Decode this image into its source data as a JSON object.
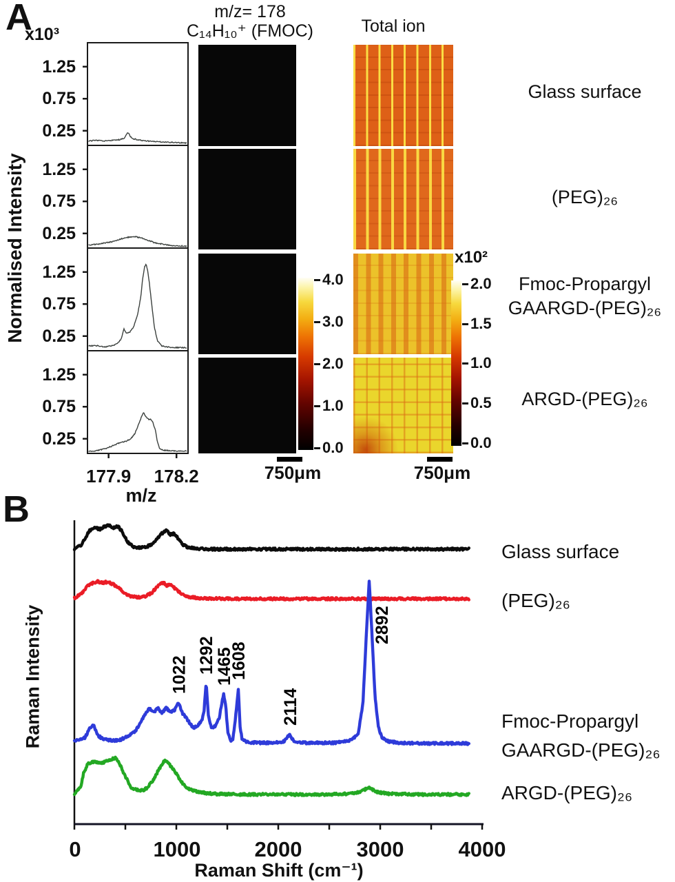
{
  "panel_a": {
    "label": "A",
    "y_axis_multiplier": "x10³",
    "y_axis_label": "Normalised Intensity",
    "x_axis_label": "m/z",
    "x_ticks": [
      "177.9",
      "178.2"
    ],
    "col2_header_line1": "m/z= 178",
    "col2_header_line2": "C₁₄H₁₀⁺ (FMOC)",
    "col3_header": "Total ion",
    "colorbar1": {
      "ticks": [
        "4.0",
        "3.0",
        "2.0",
        "1.0",
        "0.0"
      ]
    },
    "colorbar2": {
      "multiplier": "x10²",
      "ticks": [
        "2.0",
        "1.5",
        "1.0",
        "0.5",
        "0.0"
      ]
    },
    "scalebar1_label": "750μm",
    "scalebar2_label": "750μm",
    "rows": [
      {
        "label_lines": [
          "Glass surface"
        ],
        "total_ion_base_color": "#de6017"
      },
      {
        "label_lines": [
          "(PEG)₂₆"
        ],
        "total_ion_base_color": "#e0681c"
      },
      {
        "label_lines": [
          "Fmoc-Propargyl",
          "GAARGD-(PEG)₂₆"
        ],
        "total_ion_base_color": "#ecc22a"
      },
      {
        "label_lines": [
          "ARGD-(PEG)₂₆"
        ],
        "total_ion_base_color": "#ead62c"
      }
    ]
  },
  "panel_b": {
    "label": "B",
    "y_axis_label": "Raman Intensity",
    "x_axis_label": "Raman Shift (cm⁻¹)",
    "x_ticks": [
      "0",
      "1000",
      "2000",
      "3000",
      "4000"
    ],
    "legend": [
      {
        "label_lines": [
          "Glass surface"
        ]
      },
      {
        "label_lines": [
          "(PEG)₂₆"
        ]
      },
      {
        "label_lines": [
          "Fmoc-Propargyl",
          "GAARGD-(PEG)₂₆"
        ]
      },
      {
        "label_lines": [
          "ARGD-(PEG)₂₆"
        ]
      }
    ]
  },
  "chart_data": [
    {
      "type": "line",
      "title": "MALDI mass spectra at m/z 178",
      "xlabel": "m/z",
      "ylabel": "Normalised Intensity",
      "y_multiplier": "x10³",
      "xlim": [
        177.85,
        178.25
      ],
      "xticks": [
        177.9,
        178.2
      ],
      "yticks": [
        1.25,
        0.75,
        0.25
      ],
      "grid": false,
      "series": [
        {
          "name": "Glass surface",
          "points": [
            [
              0,
              0.09
            ],
            [
              0.08,
              0.1
            ],
            [
              0.16,
              0.09
            ],
            [
              0.24,
              0.1
            ],
            [
              0.31,
              0.11
            ],
            [
              0.36,
              0.13
            ],
            [
              0.4,
              0.22
            ],
            [
              0.44,
              0.13
            ],
            [
              0.5,
              0.11
            ],
            [
              0.58,
              0.09
            ],
            [
              0.68,
              0.08
            ],
            [
              0.8,
              0.07
            ],
            [
              1,
              0.06
            ]
          ]
        },
        {
          "name": "(PEG)₂₆",
          "points": [
            [
              0,
              0.07
            ],
            [
              0.08,
              0.08
            ],
            [
              0.16,
              0.1
            ],
            [
              0.24,
              0.12
            ],
            [
              0.32,
              0.16
            ],
            [
              0.4,
              0.19
            ],
            [
              0.47,
              0.2
            ],
            [
              0.54,
              0.18
            ],
            [
              0.61,
              0.14
            ],
            [
              0.68,
              0.1
            ],
            [
              0.76,
              0.08
            ],
            [
              0.85,
              0.06
            ],
            [
              1,
              0.05
            ]
          ]
        },
        {
          "name": "Fmoc-Propargyl GAARGD-(PEG)₂₆",
          "points": [
            [
              0,
              0.1
            ],
            [
              0.1,
              0.1
            ],
            [
              0.17,
              0.08
            ],
            [
              0.24,
              0.1
            ],
            [
              0.29,
              0.13
            ],
            [
              0.33,
              0.2
            ],
            [
              0.36,
              0.36
            ],
            [
              0.385,
              0.3
            ],
            [
              0.42,
              0.31
            ],
            [
              0.46,
              0.4
            ],
            [
              0.5,
              0.6
            ],
            [
              0.53,
              0.85
            ],
            [
              0.55,
              1.15
            ],
            [
              0.57,
              1.33
            ],
            [
              0.585,
              1.37
            ],
            [
              0.6,
              1.28
            ],
            [
              0.62,
              1.05
            ],
            [
              0.645,
              0.7
            ],
            [
              0.67,
              0.38
            ],
            [
              0.7,
              0.18
            ],
            [
              0.74,
              0.1
            ],
            [
              0.8,
              0.08
            ],
            [
              0.9,
              0.07
            ],
            [
              1,
              0.07
            ]
          ]
        },
        {
          "name": "ARGD-(PEG)₂₆",
          "points": [
            [
              0,
              0.05
            ],
            [
              0.1,
              0.07
            ],
            [
              0.18,
              0.1
            ],
            [
              0.26,
              0.15
            ],
            [
              0.32,
              0.19
            ],
            [
              0.38,
              0.21
            ],
            [
              0.43,
              0.25
            ],
            [
              0.47,
              0.33
            ],
            [
              0.51,
              0.48
            ],
            [
              0.54,
              0.6
            ],
            [
              0.56,
              0.66
            ],
            [
              0.58,
              0.6
            ],
            [
              0.61,
              0.55
            ],
            [
              0.63,
              0.56
            ],
            [
              0.655,
              0.5
            ],
            [
              0.68,
              0.38
            ],
            [
              0.7,
              0.2
            ],
            [
              0.72,
              0.1
            ],
            [
              0.76,
              0.07
            ],
            [
              0.85,
              0.06
            ],
            [
              1,
              0.06
            ]
          ]
        }
      ]
    },
    {
      "type": "line",
      "title": "Raman spectra",
      "xlabel": "Raman Shift (cm⁻¹)",
      "ylabel": "Raman Intensity",
      "xlim": [
        0,
        4000
      ],
      "xticks": [
        0,
        1000,
        2000,
        3000,
        4000
      ],
      "grid": false,
      "legend_position": "right",
      "annotations": [
        {
          "label": "1022",
          "x": 1022
        },
        {
          "label": "1292",
          "x": 1292
        },
        {
          "label": "1465",
          "x": 1465
        },
        {
          "label": "1608",
          "x": 1608
        },
        {
          "label": "2114",
          "x": 2114
        },
        {
          "label": "2892",
          "x": 2892
        }
      ],
      "series": [
        {
          "name": "Glass surface",
          "color": "#0c0c0c",
          "points": [
            [
              0,
              4
            ],
            [
              60,
              8
            ],
            [
              110,
              20
            ],
            [
              150,
              30
            ],
            [
              200,
              34
            ],
            [
              250,
              32
            ],
            [
              300,
              36
            ],
            [
              340,
              38
            ],
            [
              380,
              34
            ],
            [
              430,
              36
            ],
            [
              470,
              28
            ],
            [
              520,
              14
            ],
            [
              570,
              7
            ],
            [
              640,
              5
            ],
            [
              700,
              6
            ],
            [
              760,
              10
            ],
            [
              810,
              18
            ],
            [
              860,
              26
            ],
            [
              900,
              30
            ],
            [
              940,
              24
            ],
            [
              980,
              26
            ],
            [
              1020,
              18
            ],
            [
              1060,
              10
            ],
            [
              1110,
              6
            ],
            [
              1180,
              4
            ],
            [
              1300,
              3
            ],
            [
              1600,
              3
            ],
            [
              2000,
              3
            ],
            [
              2400,
              3
            ],
            [
              2800,
              3
            ],
            [
              3200,
              3
            ],
            [
              3600,
              3
            ],
            [
              3870,
              3
            ]
          ]
        },
        {
          "name": "(PEG)₂₆",
          "color": "#ea1c26",
          "points": [
            [
              0,
              4
            ],
            [
              70,
              10
            ],
            [
              130,
              22
            ],
            [
              180,
              26
            ],
            [
              230,
              28
            ],
            [
              280,
              26
            ],
            [
              330,
              28
            ],
            [
              380,
              24
            ],
            [
              430,
              20
            ],
            [
              480,
              12
            ],
            [
              540,
              7
            ],
            [
              620,
              5
            ],
            [
              700,
              7
            ],
            [
              760,
              12
            ],
            [
              820,
              22
            ],
            [
              870,
              27
            ],
            [
              910,
              22
            ],
            [
              950,
              24
            ],
            [
              1000,
              16
            ],
            [
              1050,
              10
            ],
            [
              1120,
              6
            ],
            [
              1220,
              4
            ],
            [
              1500,
              3
            ],
            [
              1900,
              3
            ],
            [
              2300,
              3
            ],
            [
              2700,
              3
            ],
            [
              3100,
              3
            ],
            [
              3500,
              3
            ],
            [
              3870,
              3
            ]
          ]
        },
        {
          "name": "Fmoc-Propargyl GAARGD-(PEG)₂₆",
          "color": "#2e3bd9",
          "points": [
            [
              0,
              8
            ],
            [
              100,
              12
            ],
            [
              160,
              28
            ],
            [
              190,
              30
            ],
            [
              230,
              16
            ],
            [
              280,
              10
            ],
            [
              340,
              9
            ],
            [
              400,
              8
            ],
            [
              460,
              10
            ],
            [
              520,
              14
            ],
            [
              600,
              22
            ],
            [
              650,
              35
            ],
            [
              700,
              48
            ],
            [
              740,
              55
            ],
            [
              780,
              50
            ],
            [
              820,
              55
            ],
            [
              860,
              48
            ],
            [
              900,
              56
            ],
            [
              940,
              50
            ],
            [
              980,
              52
            ],
            [
              1022,
              64
            ],
            [
              1060,
              48
            ],
            [
              1090,
              42
            ],
            [
              1130,
              34
            ],
            [
              1170,
              26
            ],
            [
              1210,
              30
            ],
            [
              1250,
              38
            ],
            [
              1270,
              48
            ],
            [
              1292,
              92
            ],
            [
              1315,
              44
            ],
            [
              1345,
              26
            ],
            [
              1385,
              30
            ],
            [
              1420,
              40
            ],
            [
              1450,
              66
            ],
            [
              1465,
              76
            ],
            [
              1485,
              58
            ],
            [
              1505,
              20
            ],
            [
              1530,
              8
            ],
            [
              1555,
              10
            ],
            [
              1580,
              40
            ],
            [
              1608,
              84
            ],
            [
              1625,
              30
            ],
            [
              1645,
              10
            ],
            [
              1690,
              6
            ],
            [
              1800,
              5
            ],
            [
              1950,
              5
            ],
            [
              2060,
              7
            ],
            [
              2114,
              18
            ],
            [
              2150,
              7
            ],
            [
              2250,
              5
            ],
            [
              2400,
              5
            ],
            [
              2550,
              5
            ],
            [
              2700,
              8
            ],
            [
              2780,
              16
            ],
            [
              2830,
              60
            ],
            [
              2860,
              150
            ],
            [
              2892,
              240
            ],
            [
              2920,
              160
            ],
            [
              2950,
              70
            ],
            [
              2985,
              26
            ],
            [
              3020,
              12
            ],
            [
              3080,
              7
            ],
            [
              3200,
              5
            ],
            [
              3400,
              4
            ],
            [
              3650,
              4
            ],
            [
              3870,
              4
            ]
          ]
        },
        {
          "name": "ARGD-(PEG)₂₆",
          "color": "#23a823",
          "points": [
            [
              0,
              5
            ],
            [
              60,
              14
            ],
            [
              90,
              35
            ],
            [
              130,
              48
            ],
            [
              200,
              52
            ],
            [
              280,
              50
            ],
            [
              340,
              54
            ],
            [
              400,
              57
            ],
            [
              440,
              50
            ],
            [
              500,
              30
            ],
            [
              560,
              14
            ],
            [
              640,
              9
            ],
            [
              700,
              12
            ],
            [
              760,
              22
            ],
            [
              820,
              38
            ],
            [
              880,
              53
            ],
            [
              920,
              50
            ],
            [
              960,
              42
            ],
            [
              1010,
              32
            ],
            [
              1060,
              20
            ],
            [
              1120,
              12
            ],
            [
              1200,
              8
            ],
            [
              1350,
              5
            ],
            [
              1600,
              4
            ],
            [
              1900,
              4
            ],
            [
              2200,
              4
            ],
            [
              2500,
              4
            ],
            [
              2700,
              5
            ],
            [
              2800,
              8
            ],
            [
              2890,
              14
            ],
            [
              2980,
              7
            ],
            [
              3100,
              5
            ],
            [
              3400,
              4
            ],
            [
              3870,
              4
            ]
          ]
        }
      ]
    }
  ]
}
